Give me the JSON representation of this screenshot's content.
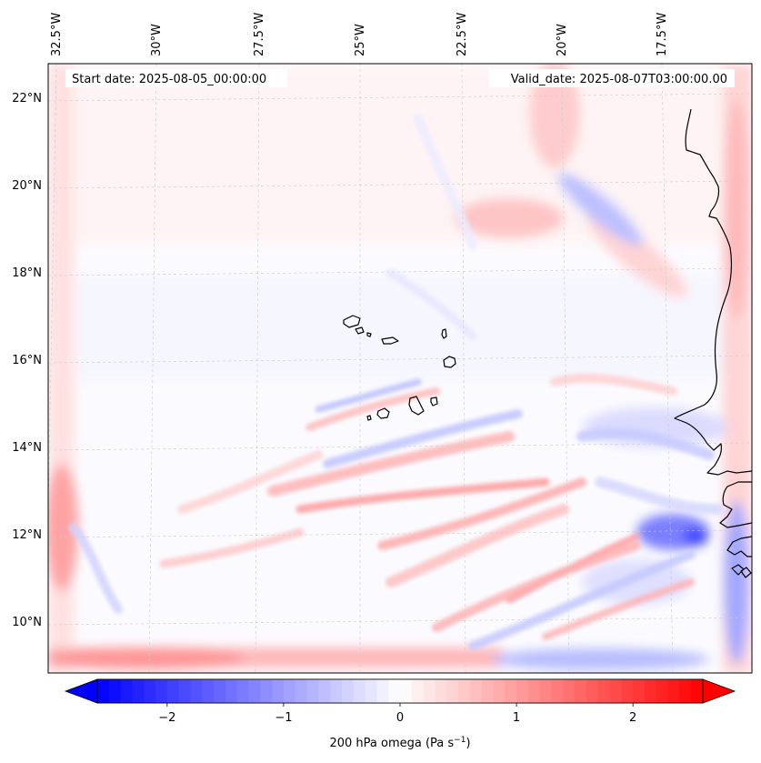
{
  "map": {
    "start_date": "Start date: 2025-08-05_00:00:00",
    "valid_date": "Valid_date: 2025-08-07T03:00:00.00",
    "lon_labels": [
      "32.5°W",
      "30°W",
      "27.5°W",
      "25°W",
      "22.5°W",
      "20°W",
      "17.5°W"
    ],
    "lat_labels": [
      "22°N",
      "20°N",
      "18°N",
      "16°N",
      "14°N",
      "12°N",
      "10°N"
    ],
    "grid": true,
    "field": "200 hPa omega",
    "colormap": "bwr",
    "colors": {
      "negative": "#0000ff",
      "zero": "#ffffff",
      "positive": "#ff0000",
      "coast": "#000000",
      "grid": "#cccccc"
    }
  },
  "colorbar": {
    "label_main": "200 hPa omega (Pa s",
    "label_sup": "−1",
    "label_end": ")",
    "ticks": [
      "−2",
      "−1",
      "0",
      "1",
      "2"
    ],
    "tick_values": [
      -2,
      -1,
      0,
      1,
      2
    ],
    "range": [
      -2.6,
      2.6
    ],
    "extend": "both"
  }
}
